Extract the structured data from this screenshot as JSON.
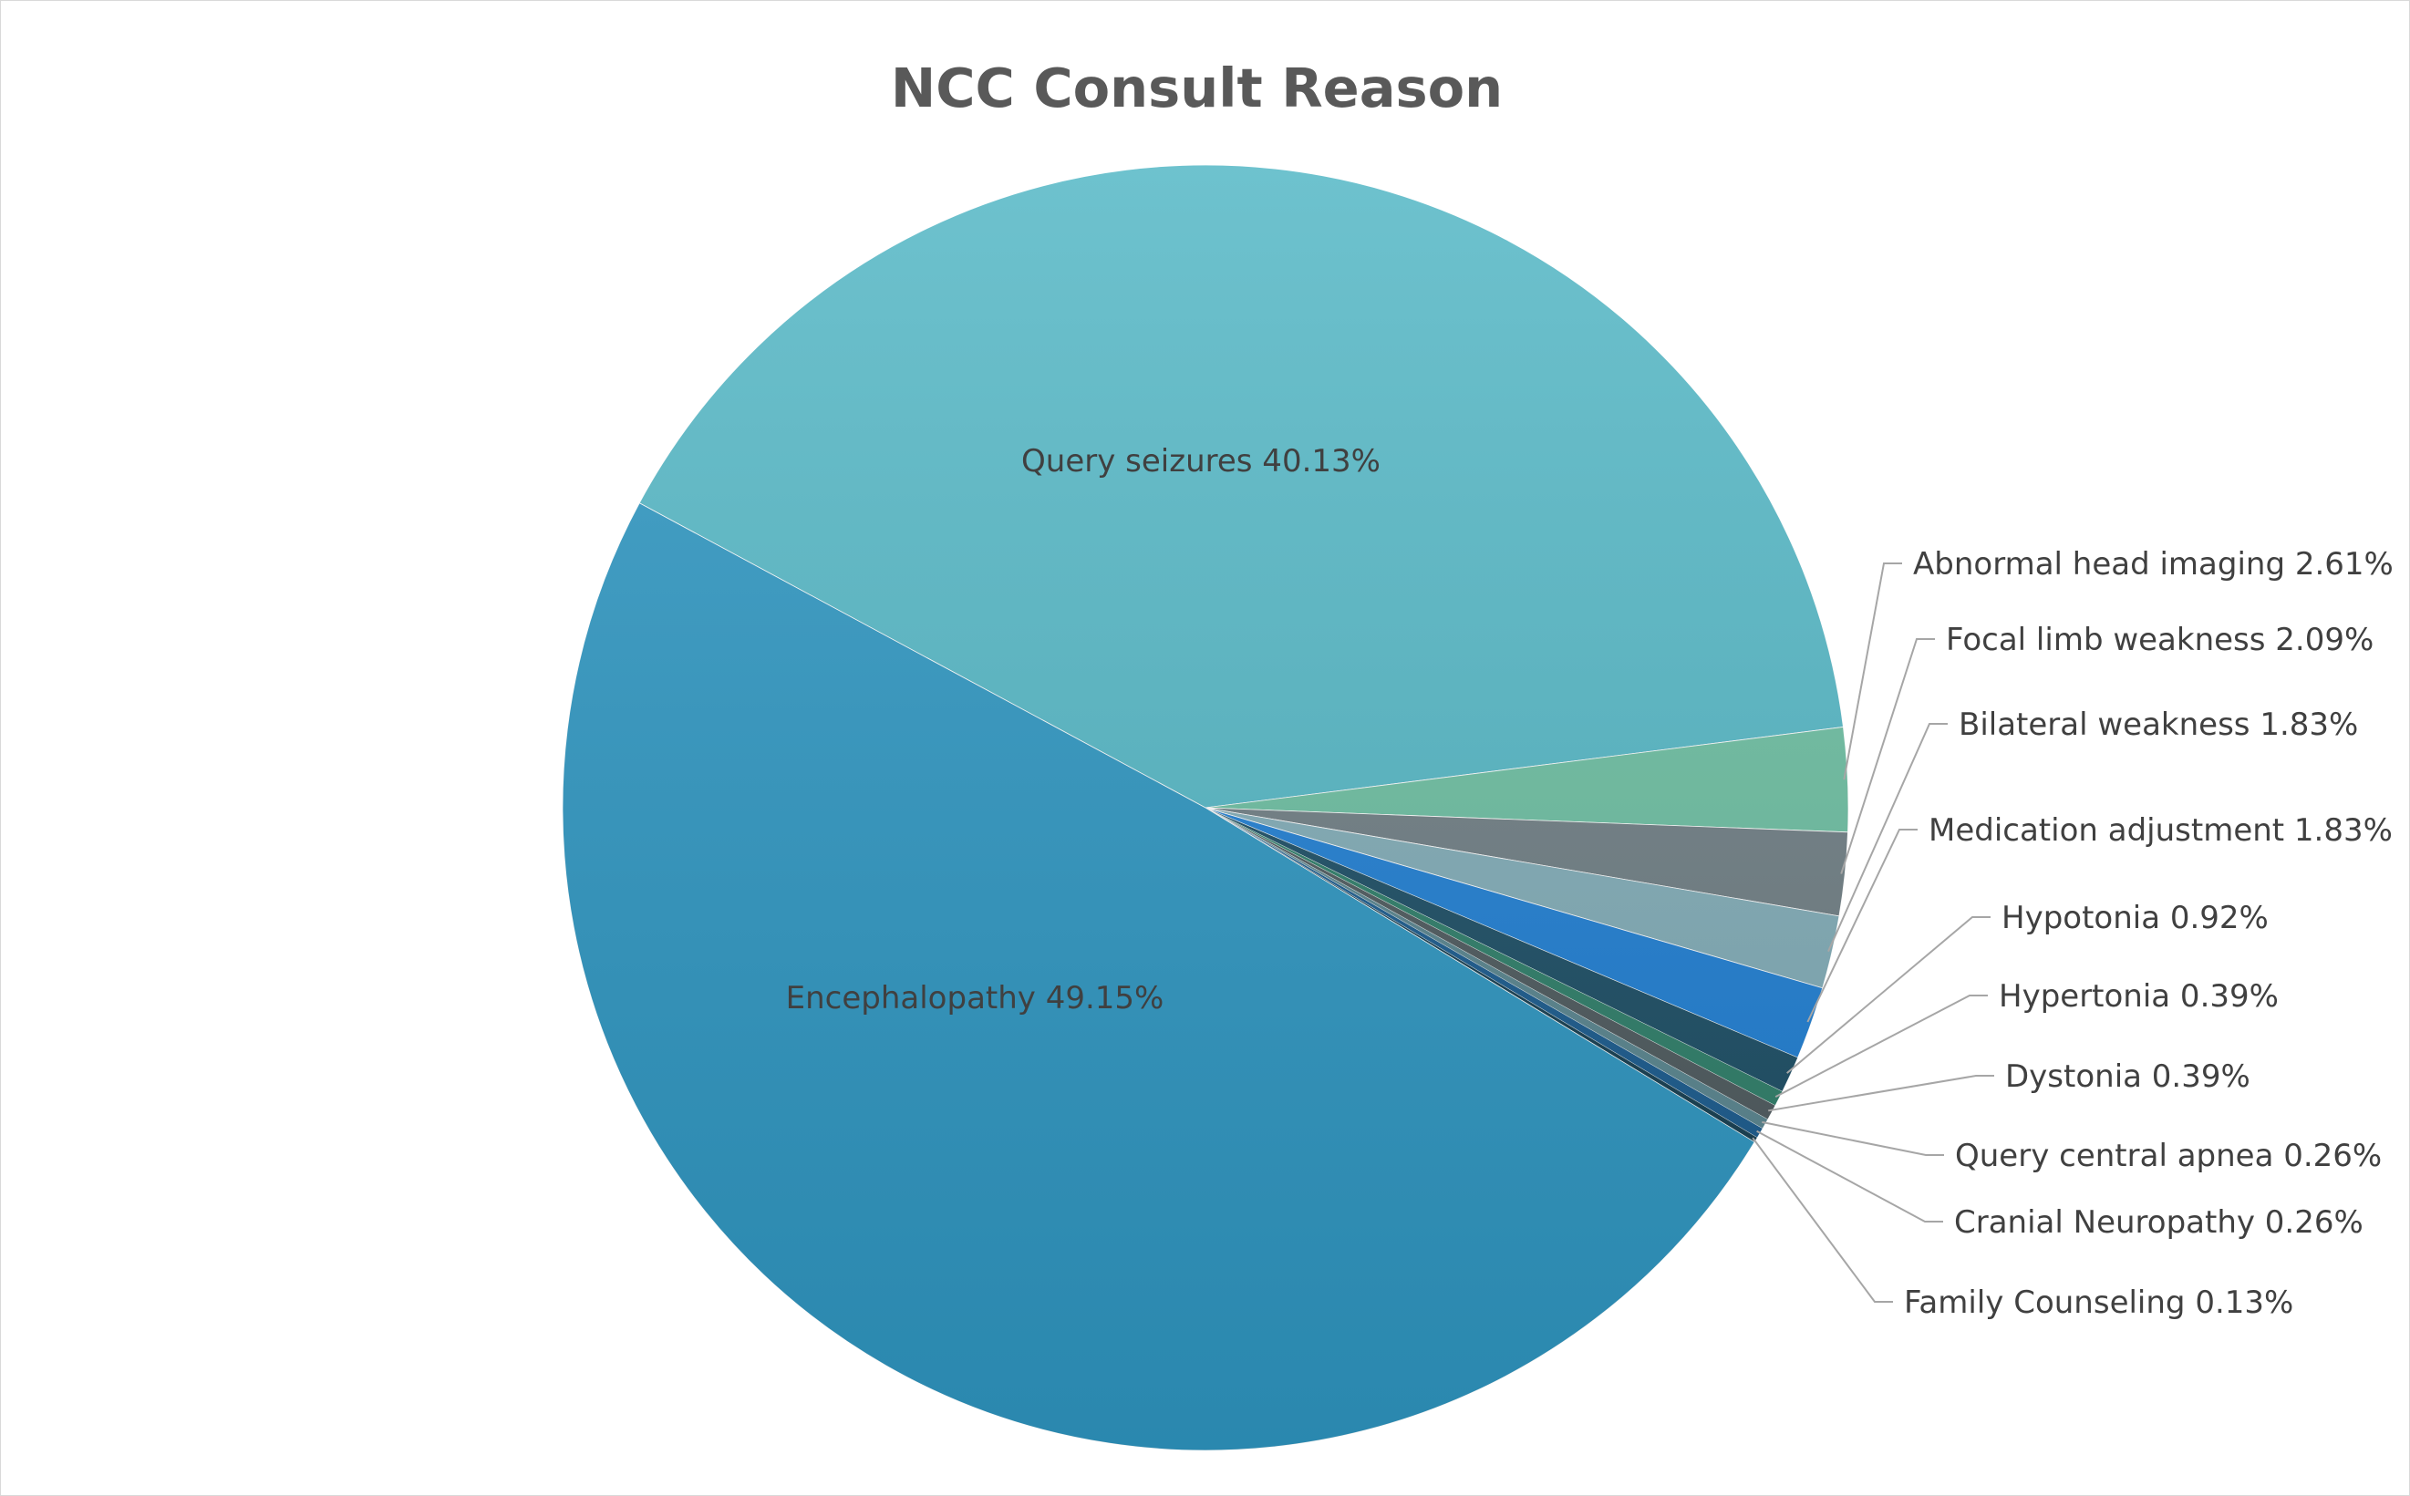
{
  "chart_data": {
    "type": "pie",
    "title": "NCC Consult Reason",
    "slices": [
      {
        "label": "Query seizures",
        "value": 40.13,
        "display": "Query seizures 40.13%",
        "color": "#56b8c6"
      },
      {
        "label": "Abnormal head imaging",
        "value": 2.61,
        "display": "Abnormal head imaging 2.61%",
        "color": "#6dbfa2"
      },
      {
        "label": "Focal limb weakness",
        "value": 2.09,
        "display": "Focal limb weakness 2.09%",
        "color": "#707f85"
      },
      {
        "label": "Bilateral weakness",
        "value": 1.83,
        "display": "Bilateral weakness 1.83%",
        "color": "#82adb8"
      },
      {
        "label": "Medication adjustment",
        "value": 1.83,
        "display": "Medication adjustment 1.83%",
        "color": "#2180d4"
      },
      {
        "label": "Hypotonia",
        "value": 0.92,
        "display": "Hypotonia 0.92%",
        "color": "#1d4f66"
      },
      {
        "label": "Hypertonia",
        "value": 0.39,
        "display": "Hypertonia 0.39%",
        "color": "#2f7f6a"
      },
      {
        "label": "Dystonia",
        "value": 0.39,
        "display": "Dystonia 0.39%",
        "color": "#4f5b5f"
      },
      {
        "label": "Query central apnea",
        "value": 0.26,
        "display": "Query central apnea 0.26%",
        "color": "#5a8690"
      },
      {
        "label": "Cranial Neuropathy",
        "value": 0.26,
        "display": "Cranial Neuropathy 0.26%",
        "color": "#1b5c8f"
      },
      {
        "label": "Family Counseling",
        "value": 0.13,
        "display": "Family Counseling 0.13%",
        "color": "#163f52"
      },
      {
        "label": "Encephalopathy",
        "value": 49.15,
        "display": "Encephalopathy 49.15%",
        "color": "#2f97c2"
      }
    ],
    "legend": "none",
    "data_labels": "category name and percentage"
  }
}
